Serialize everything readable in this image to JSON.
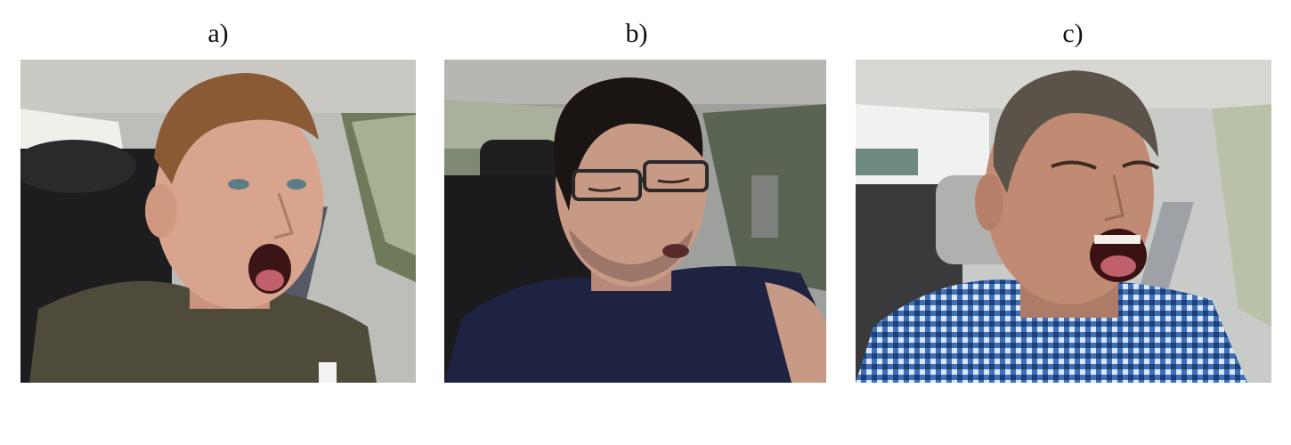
{
  "panels": [
    {
      "label": "a)",
      "scene": {
        "shirt_color": "#4f4b3a",
        "skin_color": "#d9a48e",
        "hair_color": "#8a5a35",
        "interior_color": "#b7b8b6"
      }
    },
    {
      "label": "b)",
      "scene": {
        "shirt_color": "#1d2340",
        "skin_color": "#c79a86",
        "hair_color": "#1a1512",
        "interior_color": "#9ea09d"
      }
    },
    {
      "label": "c)",
      "scene": {
        "shirt_color": "#3f6fb5",
        "skin_color": "#c08a73",
        "hair_color": "#5b5249",
        "interior_color": "#c9cbc8"
      }
    }
  ]
}
